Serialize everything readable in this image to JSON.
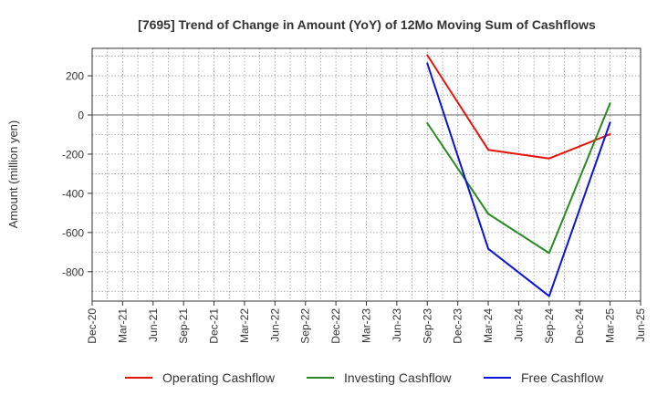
{
  "chart_data": {
    "type": "line",
    "title": "[7695]  Trend of Change in Amount (YoY) of 12Mo Moving Sum of Cashflows",
    "xlabel": "",
    "ylabel": "Amount (million yen)",
    "x_ticks": [
      "Dec-20",
      "Mar-21",
      "Jun-21",
      "Sep-21",
      "Dec-21",
      "Mar-22",
      "Jun-22",
      "Sep-22",
      "Dec-22",
      "Mar-23",
      "Jun-23",
      "Sep-23",
      "Dec-23",
      "Mar-24",
      "Jun-24",
      "Sep-24",
      "Dec-24",
      "Mar-25",
      "Jun-25"
    ],
    "y_ticks": [
      200,
      0,
      -200,
      -400,
      -600,
      -800
    ],
    "ylim": [
      -950,
      340
    ],
    "grid": true,
    "legend_position": "bottom",
    "series": [
      {
        "name": "Operating Cashflow",
        "color": "#e8120c",
        "x": [
          "Sep-23",
          "Mar-24",
          "Sep-24",
          "Mar-25"
        ],
        "values": [
          305,
          -178,
          -222,
          -98
        ]
      },
      {
        "name": "Investing Cashflow",
        "color": "#2a8a22",
        "x": [
          "Sep-23",
          "Mar-24",
          "Sep-24",
          "Mar-25"
        ],
        "values": [
          -42,
          -505,
          -705,
          60
        ]
      },
      {
        "name": "Free Cashflow",
        "color": "#0a12d8",
        "x": [
          "Sep-23",
          "Mar-24",
          "Sep-24",
          "Mar-25"
        ],
        "values": [
          263,
          -683,
          -925,
          -38
        ]
      }
    ]
  }
}
